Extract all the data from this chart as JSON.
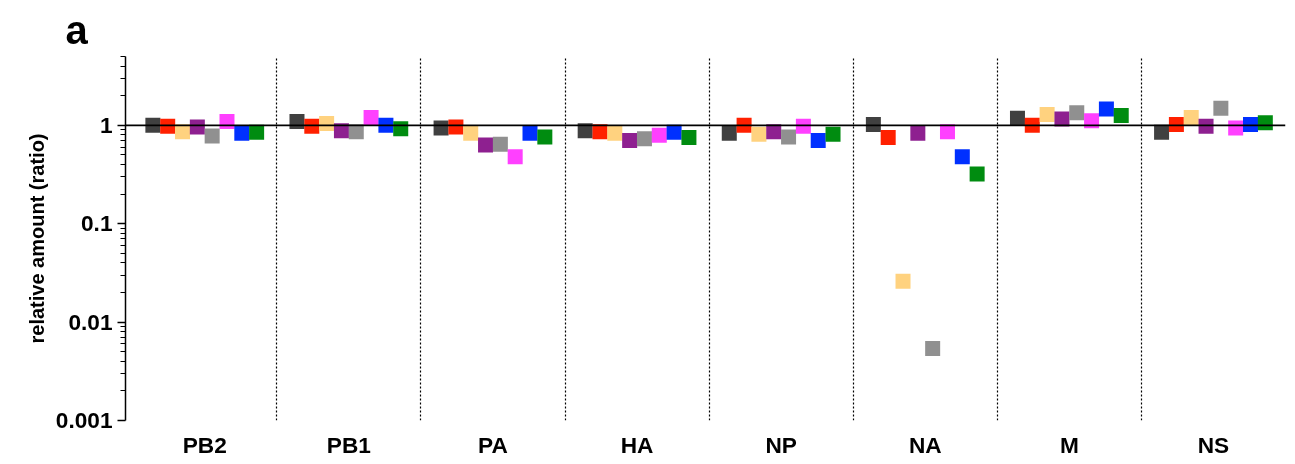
{
  "chart_data": {
    "type": "scatter",
    "title": "a",
    "ylabel": "relative amount (ratio)",
    "categories": [
      "PB2",
      "PB1",
      "PA",
      "HA",
      "NP",
      "NA",
      "M",
      "NS"
    ],
    "series": [
      {
        "color": "#404040",
        "values": [
          1.0,
          1.09,
          0.94,
          0.88,
          0.83,
          1.02,
          1.18,
          0.85
        ]
      },
      {
        "color": "#ff2000",
        "values": [
          0.98,
          0.98,
          0.96,
          0.86,
          1.0,
          0.75,
          1.0,
          1.02
        ]
      },
      {
        "color": "#ffd27f",
        "values": [
          0.86,
          1.04,
          0.83,
          0.83,
          0.81,
          0.026,
          1.29,
          1.2
        ]
      },
      {
        "color": "#8e2090",
        "values": [
          0.96,
          0.88,
          0.63,
          0.7,
          0.86,
          0.83,
          1.16,
          0.98
        ]
      },
      {
        "color": "#909090",
        "values": [
          0.78,
          0.86,
          0.64,
          0.73,
          0.76,
          0.0054,
          1.34,
          1.49
        ]
      },
      {
        "color": "#ff40ff",
        "values": [
          1.09,
          1.2,
          0.48,
          0.79,
          0.98,
          0.86,
          1.11,
          0.94
        ]
      },
      {
        "color": "#0030ff",
        "values": [
          0.83,
          1.0,
          0.83,
          0.85,
          0.7,
          0.48,
          1.46,
          1.02
        ]
      },
      {
        "color": "#008c10",
        "values": [
          0.85,
          0.92,
          0.76,
          0.75,
          0.81,
          0.32,
          1.26,
          1.06
        ]
      }
    ],
    "log": true,
    "ylim": [
      0.001,
      5
    ],
    "yticks": [
      0.001,
      0.01,
      0.1,
      1
    ],
    "marker": "square",
    "grid": "x",
    "ref_lines": [
      {
        "axis": "y",
        "value": 1,
        "color": "#000000"
      }
    ]
  }
}
